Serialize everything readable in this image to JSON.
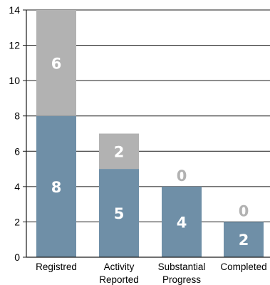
{
  "chart_data": {
    "type": "bar",
    "stacked": true,
    "categories": [
      [
        "Registred"
      ],
      [
        "Activity",
        "Reported"
      ],
      [
        "Substantial",
        "Progress"
      ],
      [
        "Completed"
      ]
    ],
    "series": [
      {
        "values": [
          8,
          5,
          4,
          2
        ],
        "color": "#6f8fa7",
        "label_color": "#ffffff"
      },
      {
        "values": [
          6,
          2,
          0,
          0
        ],
        "color": "#b2b2b2",
        "label_color_inside": "#ffffff",
        "label_color_zero": "#b2b2b2"
      }
    ],
    "ylim": [
      0,
      14
    ],
    "yticks": [
      0,
      2,
      4,
      6,
      8,
      10,
      12,
      14
    ],
    "grid": true,
    "title": "",
    "xlabel": "",
    "ylabel": ""
  }
}
